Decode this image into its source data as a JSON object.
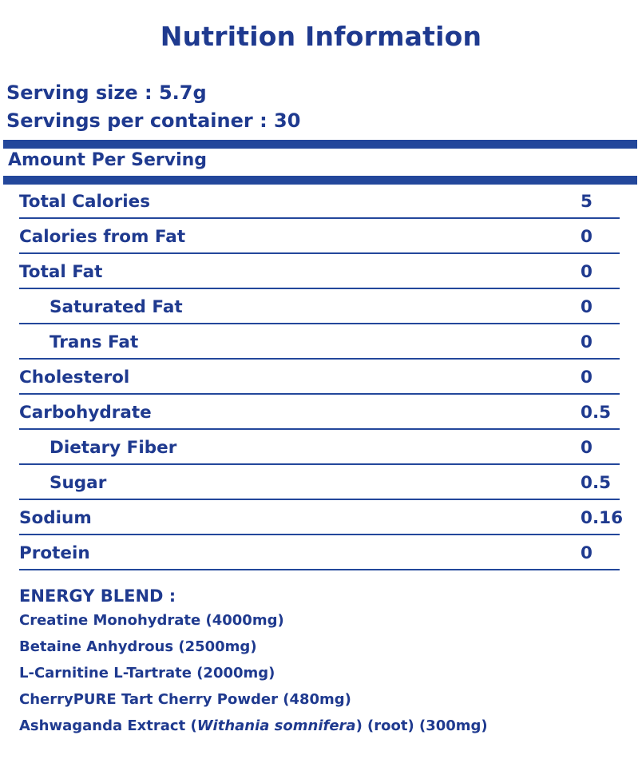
{
  "title": "Nutrition Information",
  "serving_size": "Serving size : 5.7g",
  "servings_per_container": "Servings per container : 30",
  "amount_header": "Amount Per Serving",
  "rows": [
    {
      "label": "Total Calories",
      "value": "5",
      "indent": false
    },
    {
      "label": "Calories from Fat",
      "value": "0",
      "indent": false
    },
    {
      "label": "Total Fat",
      "value": "0",
      "indent": false
    },
    {
      "label": "Saturated Fat",
      "value": "0",
      "indent": true
    },
    {
      "label": "Trans Fat",
      "value": "0",
      "indent": true
    },
    {
      "label": "Cholesterol",
      "value": "0",
      "indent": false
    },
    {
      "label": "Carbohydrate",
      "value": "0.5",
      "indent": false
    },
    {
      "label": "Dietary Fiber",
      "value": "0",
      "indent": true
    },
    {
      "label": "Sugar",
      "value": "0.5",
      "indent": true
    },
    {
      "label": "Sodium",
      "value": "0.16",
      "indent": false
    },
    {
      "label": "Protein",
      "value": "0",
      "indent": false
    }
  ],
  "blend": {
    "heading": "ENERGY BLEND :",
    "items": [
      "Creatine Monohydrate (4000mg)",
      "Betaine Anhydrous (2500mg)",
      "L-Carnitine L-Tartrate (2000mg)",
      "CherryPURE Tart Cherry Powder (480mg)"
    ],
    "last": {
      "pre": "Ashwaganda Extract (",
      "italic": "Withania somnifera",
      "post": ") (root) (300mg)"
    }
  },
  "colors": {
    "primary": "#1f3a8f",
    "bar": "#23479b"
  }
}
